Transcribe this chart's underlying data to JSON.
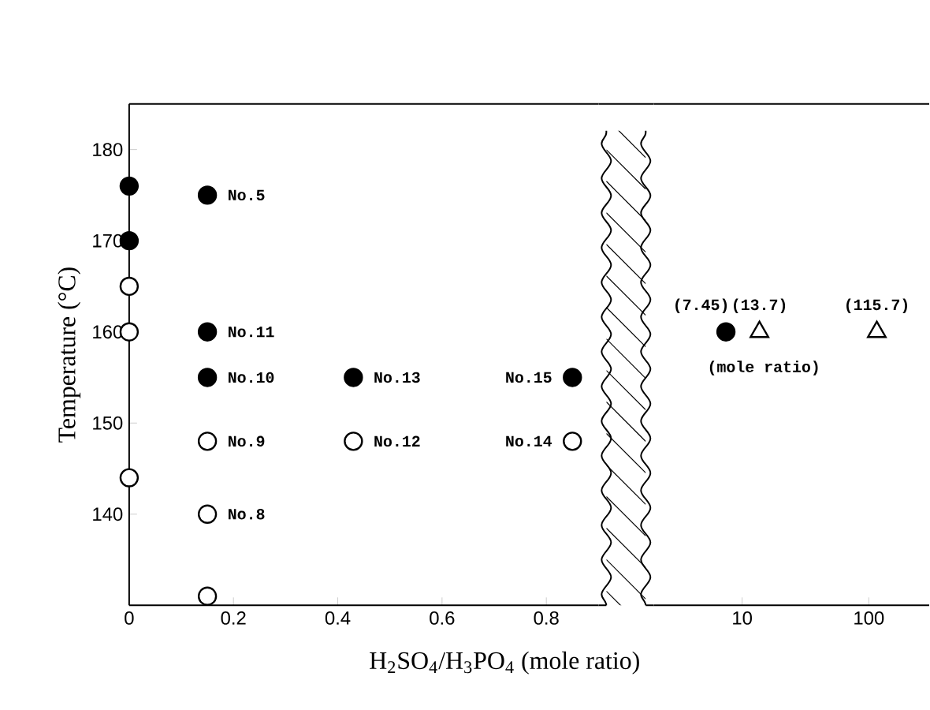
{
  "chart_data": [
    {
      "type": "scatter",
      "xlabel": "H$_{2}$SO$_{4}$/H$_{3}$PO$_{4}$ (mole ratio)",
      "ylabel": "Temperature (°C)",
      "xlim": [
        0,
        0.9
      ],
      "xticks": [
        0,
        0.2,
        0.4,
        0.6,
        0.8
      ],
      "ylim": [
        130,
        185
      ],
      "yticks": [
        140,
        150,
        160,
        170,
        180
      ],
      "series": [
        {
          "x": [
            0,
            0,
            0.15,
            0.15,
            0.15,
            0.43,
            0.85
          ],
          "values": [
            176,
            170,
            175,
            160,
            155,
            155,
            155
          ],
          "color": "#000000",
          "marker": "circle"
        },
        {
          "x": [
            0,
            0,
            0,
            0.15,
            0.15,
            0.15,
            0.43,
            0.85
          ],
          "values": [
            165,
            160,
            144,
            148,
            140,
            131,
            148,
            148
          ],
          "color": "#ffffff",
          "marker": "circle"
        }
      ],
      "annotations": [
        {
          "text": "No.5",
          "x": 0.15,
          "y": 175
        },
        {
          "text": "No.11",
          "x": 0.15,
          "y": 160
        },
        {
          "text": "No.10",
          "x": 0.15,
          "y": 155
        },
        {
          "text": "No.9",
          "x": 0.15,
          "y": 148
        },
        {
          "text": "No.8",
          "x": 0.15,
          "y": 140
        },
        {
          "text": "No.13",
          "x": 0.43,
          "y": 155
        },
        {
          "text": "No.12",
          "x": 0.43,
          "y": 148
        },
        {
          "text": "No.15",
          "x": 0.85,
          "y": 155
        },
        {
          "text": "No.14",
          "x": 0.85,
          "y": 148
        }
      ]
    },
    {
      "type": "scatter",
      "log": "x",
      "xlim": [
        2,
        300
      ],
      "xticks": [
        10,
        100
      ],
      "ylim": [
        130,
        185
      ],
      "tick_labels": "x",
      "series": [
        {
          "x": [
            7.45
          ],
          "values": [
            160
          ],
          "color": "#000000",
          "marker": "circle"
        },
        {
          "x": [
            13.7,
            115.7
          ],
          "values": [
            160,
            160
          ],
          "color": "#ffffff",
          "marker": "triangle"
        }
      ],
      "annotations": [
        {
          "text": "(7.45)",
          "x": 7.45,
          "y": 160
        },
        {
          "text": "(13.7)",
          "x": 13.7,
          "y": 160
        },
        {
          "text": "(115.7)",
          "x": 115.7,
          "y": 160
        },
        "(mole ratio)"
      ]
    }
  ]
}
